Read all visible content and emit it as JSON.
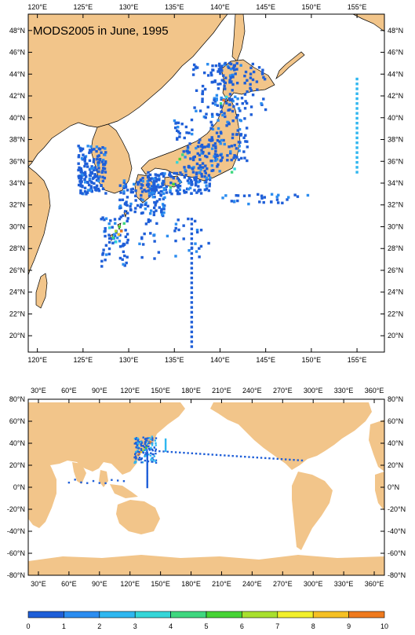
{
  "title": "MODS2005 in June, 1995",
  "colors": {
    "land": "#f2c58a",
    "ocean": "#ffffff",
    "frame": "#000000"
  },
  "regional_map": {
    "lon_range": [
      119,
      158
    ],
    "lat_range": [
      18.5,
      49.5
    ],
    "x_tick_labels": [
      "120°E",
      "125°E",
      "130°E",
      "135°E",
      "140°E",
      "145°E",
      "150°E",
      "155°E"
    ],
    "y_tick_labels": [
      "20°N",
      "22°N",
      "24°N",
      "26°N",
      "28°N",
      "30°N",
      "32°N",
      "34°N",
      "36°N",
      "38°N",
      "40°N",
      "42°N",
      "44°N",
      "46°N",
      "48°N"
    ]
  },
  "global_map": {
    "lon_range": [
      20,
      370
    ],
    "lat_range": [
      -80,
      80
    ],
    "x_tick_labels": [
      "30°E",
      "60°E",
      "90°E",
      "120°E",
      "150°E",
      "180°E",
      "210°E",
      "240°E",
      "270°E",
      "300°E",
      "330°E",
      "360°E"
    ],
    "y_tick_labels": [
      "80°N",
      "60°N",
      "40°N",
      "20°N",
      "0°N",
      "-20°N",
      "-40°N",
      "-60°N",
      "-80°N"
    ]
  },
  "colorbar": {
    "ticks": [
      "0",
      "1",
      "2",
      "3",
      "4",
      "5",
      "6",
      "7",
      "8",
      "9",
      "10"
    ],
    "colors": [
      "#1f5fd8",
      "#2b8df0",
      "#2fb7f0",
      "#35d6d8",
      "#3fd77f",
      "#46d335",
      "#a8e02e",
      "#f2f02c",
      "#f5c024",
      "#ef7a1e",
      "#e02a1c"
    ]
  },
  "chart_data": {
    "type": "heatmap",
    "title": "MODS2005 in June, 1995",
    "value_range": [
      0,
      10
    ],
    "regional_cells": [
      {
        "lon": 129.2,
        "lat": 29.6,
        "value": 9.5
      },
      {
        "lon": 128.9,
        "lat": 29.3,
        "value": 8.5
      },
      {
        "lon": 128.6,
        "lat": 29.6,
        "value": 6
      },
      {
        "lon": 129.0,
        "lat": 30.0,
        "value": 5
      },
      {
        "lon": 128.3,
        "lat": 29.0,
        "value": 4
      },
      {
        "lon": 129.5,
        "lat": 30.3,
        "value": 4.5
      },
      {
        "lon": 128.6,
        "lat": 28.6,
        "value": 3.5
      },
      {
        "lon": 127.9,
        "lat": 29.9,
        "value": 3
      },
      {
        "lon": 135.6,
        "lat": 36.2,
        "value": 5
      },
      {
        "lon": 135.9,
        "lat": 36.6,
        "value": 4
      },
      {
        "lon": 135.3,
        "lat": 35.9,
        "value": 3.5
      },
      {
        "lon": 134.6,
        "lat": 33.6,
        "value": 4
      },
      {
        "lon": 134.9,
        "lat": 33.9,
        "value": 5
      },
      {
        "lon": 140.4,
        "lat": 41.6,
        "value": 9.5
      },
      {
        "lon": 140.1,
        "lat": 41.3,
        "value": 4
      },
      {
        "lon": 140.7,
        "lat": 41.9,
        "value": 3
      },
      {
        "lon": 141.3,
        "lat": 35.0,
        "value": 4
      },
      {
        "lon": 141.6,
        "lat": 35.3,
        "value": 3
      }
    ],
    "global_cells": [
      {
        "lon": 129,
        "lat": 30,
        "value": 9
      },
      {
        "lon": 131,
        "lat": 32,
        "value": 8
      },
      {
        "lon": 133,
        "lat": 34,
        "value": 6
      },
      {
        "lon": 136,
        "lat": 36,
        "value": 5
      },
      {
        "lon": 140,
        "lat": 41,
        "value": 9
      }
    ]
  }
}
